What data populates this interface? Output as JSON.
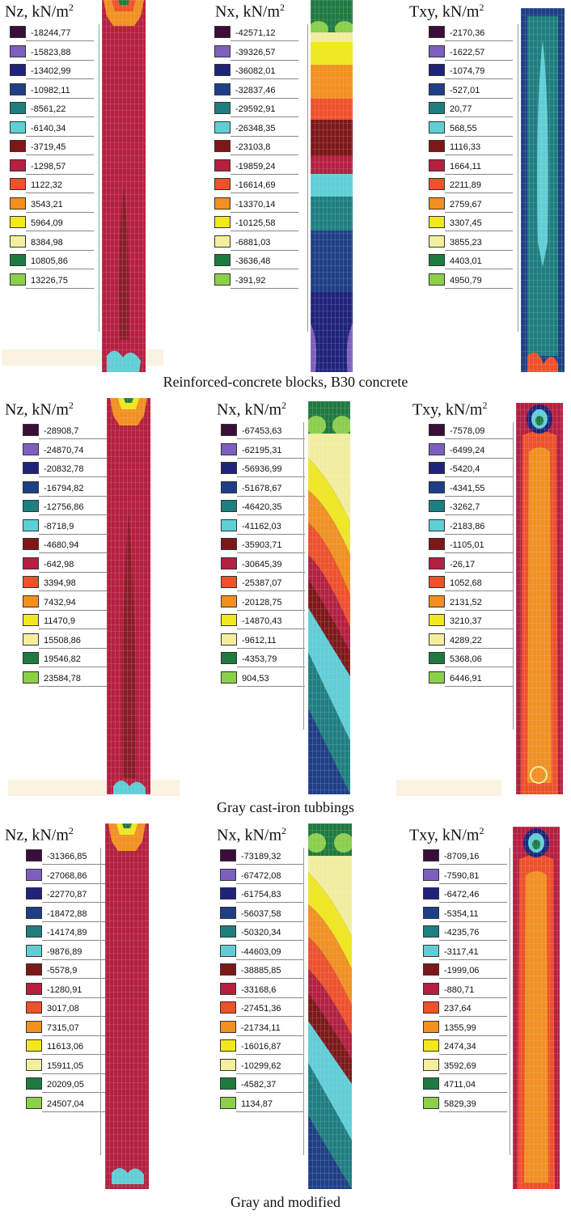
{
  "rows": [
    {
      "caption": "Reinforced-concrete blocks, B30 concrete",
      "panels": [
        {
          "title": "Nz, kN/m",
          "sup": "2",
          "values": [
            "-18244,77",
            "-15823,88",
            "-13402,99",
            "-10982,11",
            "-8561,22",
            "-6140,34",
            "-3719,45",
            "-1298,57",
            "1122,32",
            "3543,21",
            "5964,09",
            "8384,98",
            "10805,86",
            "13226,75"
          ]
        },
        {
          "title": "Nx, kN/m",
          "sup": "2",
          "values": [
            "-42571,12",
            "-39326,57",
            "-36082,01",
            "-32837,46",
            "-29592,91",
            "-26348,35",
            "-23103,8",
            "-19859,24",
            "-16614,69",
            "-13370,14",
            "-10125,58",
            "-6881,03",
            "-3636,48",
            "-391,92"
          ]
        },
        {
          "title": "Txy, kN/m",
          "sup": "2",
          "values": [
            "-2170,36",
            "-1622,57",
            "-1074,79",
            "-527,01",
            "20,77",
            "568,55",
            "1116,33",
            "1664,11",
            "2211,89",
            "2759,67",
            "3307,45",
            "3855,23",
            "4403,01",
            "4950,79"
          ]
        }
      ]
    },
    {
      "caption": "Gray cast-iron tubbings",
      "panels": [
        {
          "title": "Nz, kN/m",
          "sup": "2",
          "values": [
            "-28908,7",
            "-24870,74",
            "-20832,78",
            "-16794,82",
            "-12756,86",
            "-8718,9",
            "-4680,94",
            "-642,98",
            "3394,98",
            "7432,94",
            "11470,9",
            "15508,86",
            "19546,82",
            "23584,78"
          ]
        },
        {
          "title": "Nx, kN/m",
          "sup": "2",
          "values": [
            "-67453,63",
            "-62195,31",
            "-56936,99",
            "-51678,67",
            "-46420,35",
            "-41162,03",
            "-35903,71",
            "-30645,39",
            "-25387,07",
            "-20128,75",
            "-14870,43",
            "-9612,11",
            "-4353,79",
            "904,53"
          ]
        },
        {
          "title": "Txy, kN/m",
          "sup": "2",
          "values": [
            "-7578,09",
            "-6499,24",
            "-5420,4",
            "-4341,55",
            "-3262,7",
            "-2183,86",
            "-1105,01",
            "-26,17",
            "1052,68",
            "2131,52",
            "3210,37",
            "4289,22",
            "5368,06",
            "6446,91"
          ]
        }
      ]
    },
    {
      "caption": "Gray and modified",
      "panels": [
        {
          "title": "Nz, kN/m",
          "sup": "2",
          "values": [
            "-31366,85",
            "-27068,86",
            "-22770,87",
            "-18472,88",
            "-14174,89",
            "-9876,89",
            "-5578,9",
            "-1280,91",
            "3017,08",
            "7315,07",
            "11613,06",
            "15911,05",
            "20209,05",
            "24507,04"
          ]
        },
        {
          "title": "Nx, kN/m",
          "sup": "2",
          "values": [
            "-73189,32",
            "-67472,08",
            "-61754,83",
            "-56037,58",
            "-50320,34",
            "-44603,09",
            "-38885,85",
            "-33168,6",
            "-27451,36",
            "-21734,11",
            "-16016,87",
            "-10299,62",
            "-4582,37",
            "1134,87"
          ]
        },
        {
          "title": "Txy, kN/m",
          "sup": "2",
          "values": [
            "-8709,16",
            "-7590,81",
            "-6472,46",
            "-5354,11",
            "-4235,76",
            "-3117,41",
            "-1999,06",
            "-880,71",
            "237,64",
            "1355,99",
            "2474,34",
            "3592,69",
            "4711,04",
            "5829,39"
          ]
        }
      ]
    }
  ],
  "legend_colors": [
    "#3b0d3b",
    "#7d5fbf",
    "#1f237a",
    "#1e3f85",
    "#1f7f80",
    "#5fcfd6",
    "#7e1818",
    "#b52040",
    "#f0502a",
    "#f3901f",
    "#f1e81e",
    "#f3ef9e",
    "#1f7a3f",
    "#8ccf4a"
  ]
}
